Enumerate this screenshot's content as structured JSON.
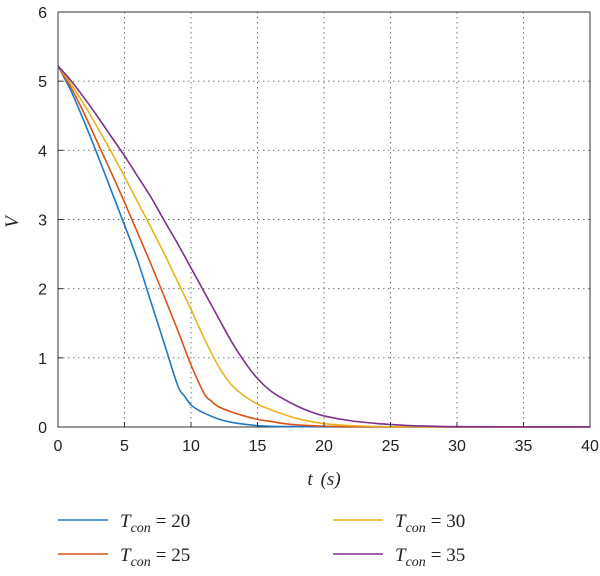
{
  "chart_data": {
    "type": "line",
    "xlabel_var": "t",
    "xlabel_unit": "(s)",
    "ylabel": "V",
    "xlim": [
      0,
      40
    ],
    "ylim": [
      0,
      6
    ],
    "xticks": [
      0,
      5,
      10,
      15,
      20,
      25,
      30,
      35,
      40
    ],
    "yticks": [
      0,
      1,
      2,
      3,
      4,
      5,
      6
    ],
    "grid": true,
    "legend_position": "bottom",
    "series": [
      {
        "name_main": "T",
        "name_sub": "con",
        "name_value": "= 20",
        "color": "#1f77c4",
        "x": [
          0,
          1,
          2,
          3,
          4,
          5,
          6,
          7,
          8,
          9,
          9.5,
          10,
          10.5,
          11,
          12,
          13,
          14,
          15,
          16,
          18,
          20,
          25,
          30,
          40
        ],
        "y": [
          5.22,
          4.85,
          4.4,
          3.92,
          3.42,
          2.92,
          2.4,
          1.8,
          1.2,
          0.6,
          0.45,
          0.32,
          0.25,
          0.2,
          0.12,
          0.07,
          0.04,
          0.02,
          0.01,
          0.005,
          0.002,
          0,
          0,
          0
        ]
      },
      {
        "name_main": "T",
        "name_sub": "con",
        "name_value": "= 25",
        "color": "#d95319",
        "x": [
          0,
          1,
          2,
          3,
          4,
          5,
          6,
          7,
          8,
          9,
          10,
          11,
          11.5,
          12,
          13,
          14,
          15,
          16,
          17,
          18,
          20,
          22,
          25,
          30,
          40
        ],
        "y": [
          5.22,
          4.9,
          4.52,
          4.1,
          3.68,
          3.25,
          2.8,
          2.35,
          1.88,
          1.4,
          0.9,
          0.48,
          0.38,
          0.3,
          0.22,
          0.16,
          0.11,
          0.08,
          0.05,
          0.03,
          0.012,
          0.005,
          0.001,
          0,
          0
        ]
      },
      {
        "name_main": "T",
        "name_sub": "con",
        "name_value": "= 30",
        "color": "#edb120",
        "x": [
          0,
          1,
          2,
          3,
          4,
          5,
          6,
          7,
          8,
          9,
          10,
          11,
          12,
          13,
          14,
          15,
          16,
          17,
          18,
          19,
          20,
          22,
          25,
          30,
          40
        ],
        "y": [
          5.22,
          4.95,
          4.65,
          4.32,
          3.98,
          3.62,
          3.25,
          2.88,
          2.5,
          2.1,
          1.7,
          1.28,
          0.9,
          0.62,
          0.45,
          0.33,
          0.25,
          0.18,
          0.12,
          0.08,
          0.05,
          0.02,
          0.005,
          0,
          0
        ]
      },
      {
        "name_main": "T",
        "name_sub": "con",
        "name_value": "= 35",
        "color": "#7e2f8e",
        "x": [
          0,
          1,
          2,
          3,
          4,
          5,
          6,
          7,
          8,
          9,
          10,
          11,
          12,
          13,
          14,
          15,
          16,
          17,
          18,
          19,
          20,
          22,
          24,
          26,
          28,
          30,
          35,
          40
        ],
        "y": [
          5.22,
          5.0,
          4.75,
          4.48,
          4.2,
          3.92,
          3.62,
          3.32,
          2.98,
          2.65,
          2.3,
          1.95,
          1.6,
          1.25,
          0.95,
          0.7,
          0.52,
          0.4,
          0.3,
          0.22,
          0.16,
          0.09,
          0.05,
          0.025,
          0.012,
          0.005,
          0.001,
          0
        ]
      }
    ]
  }
}
